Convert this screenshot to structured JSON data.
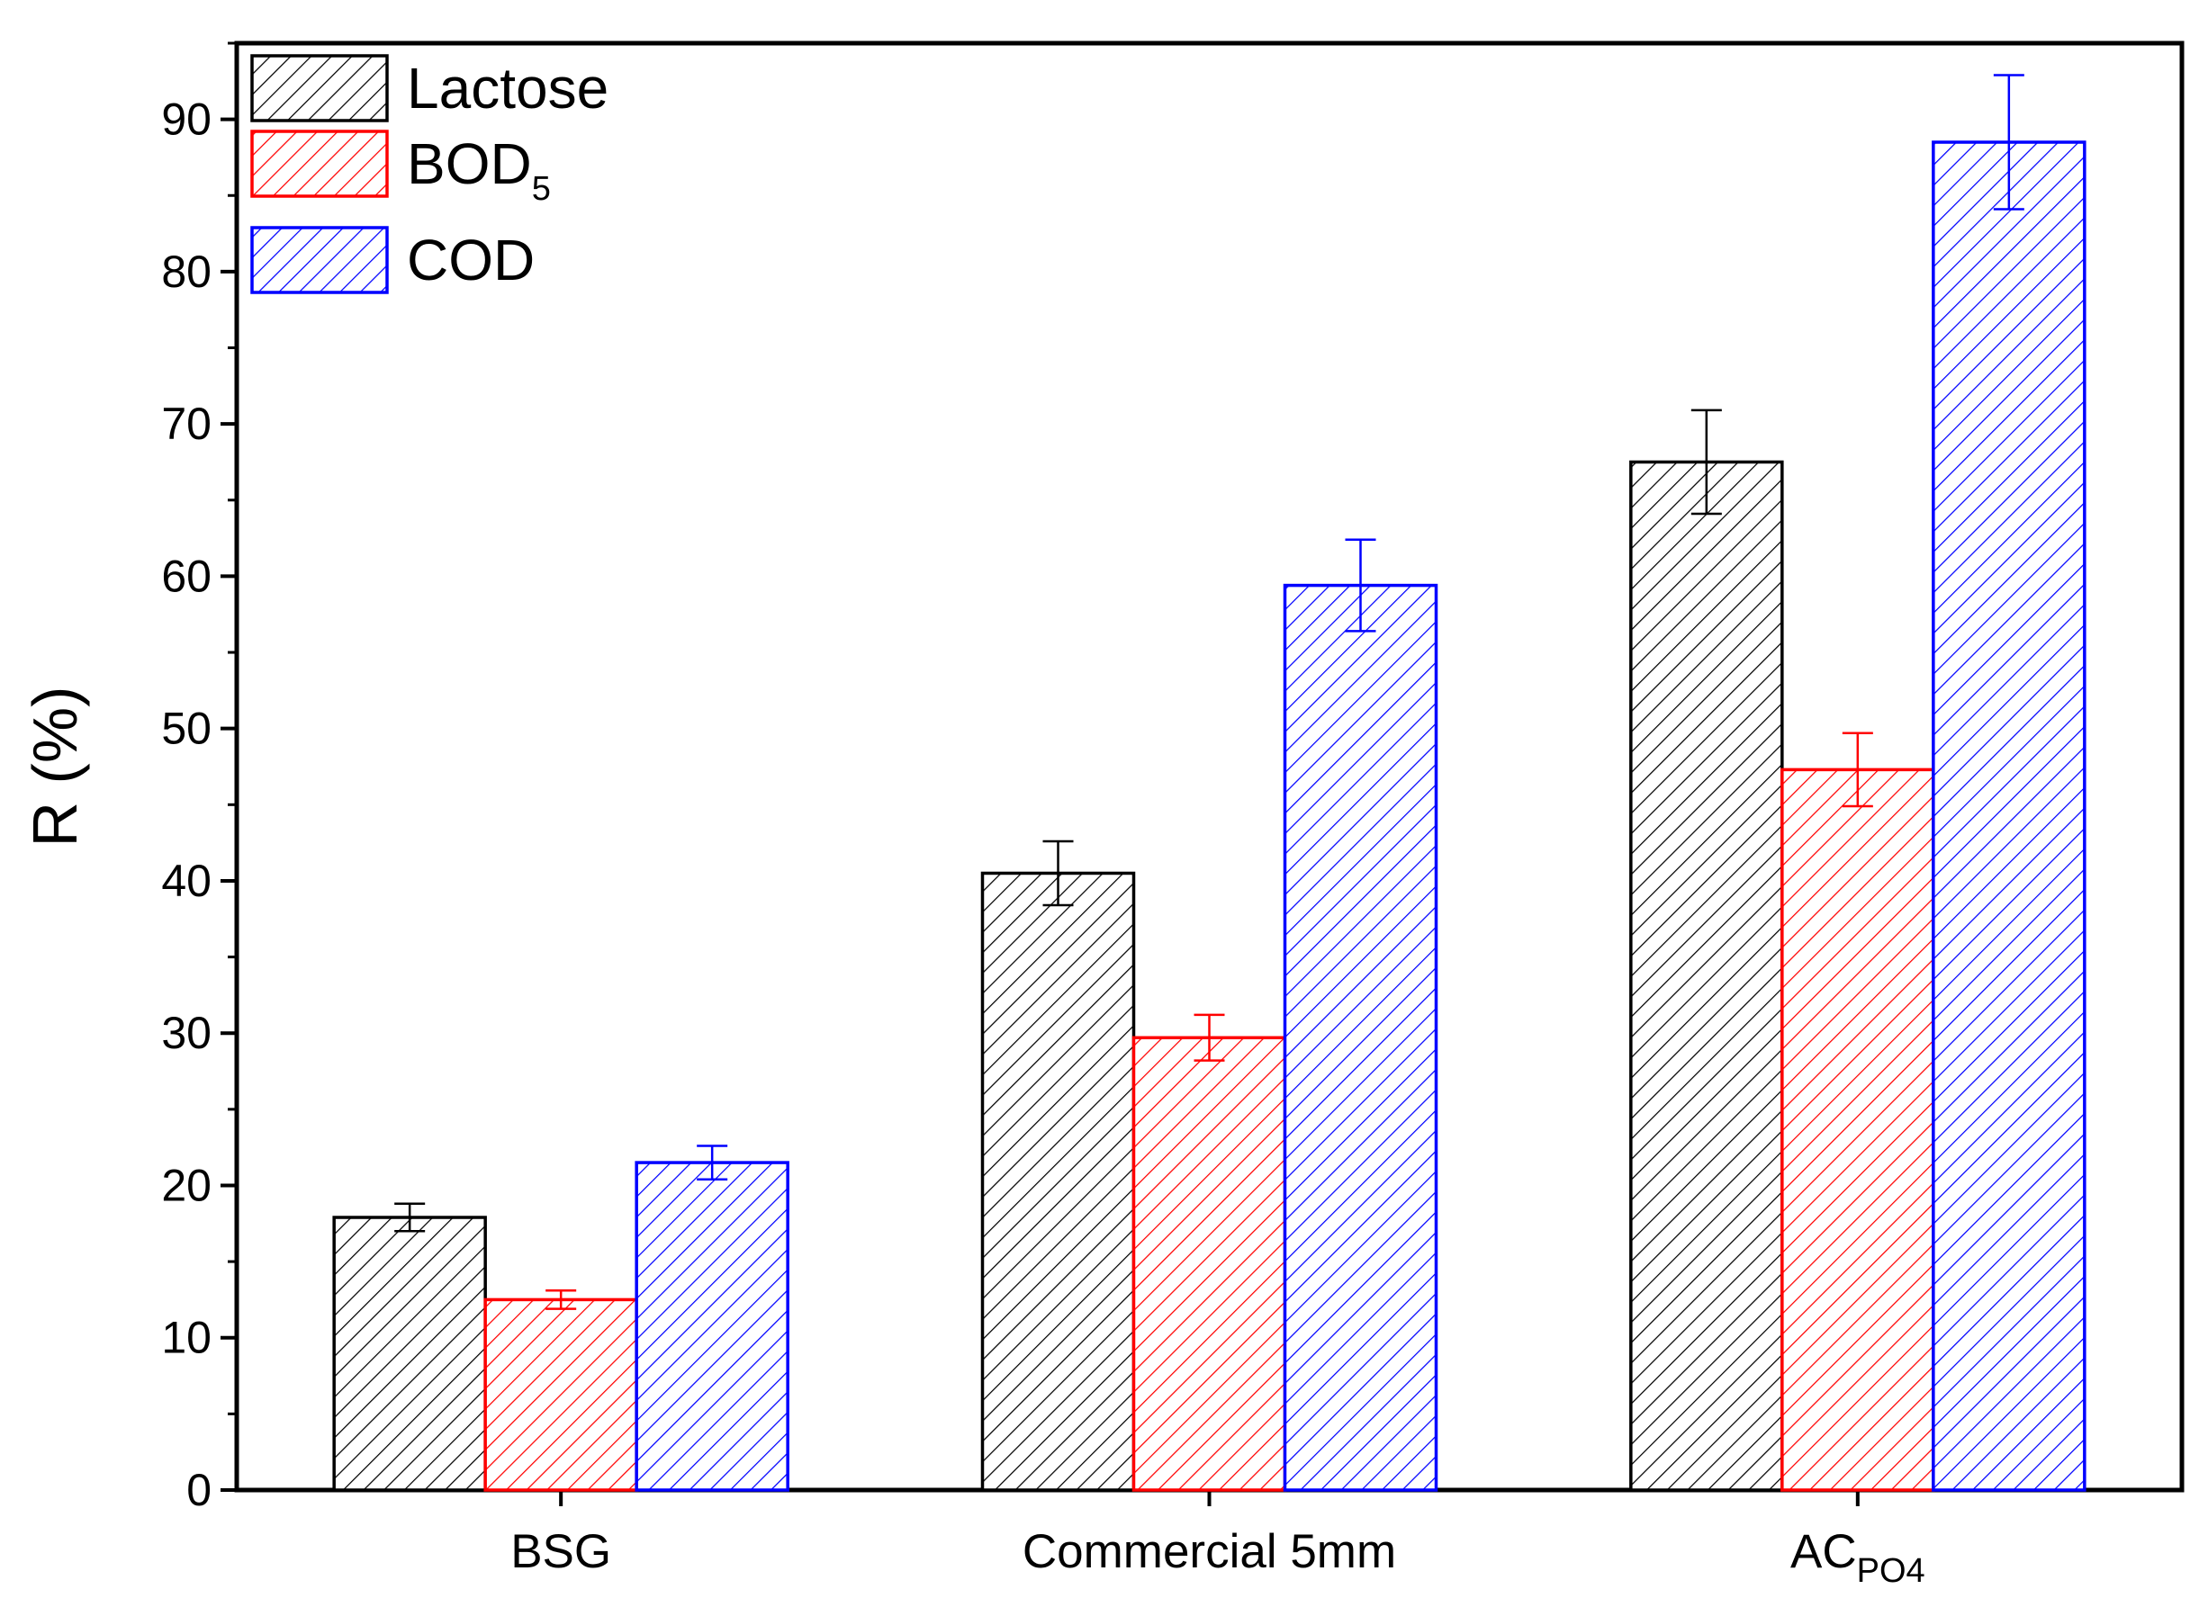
{
  "chart_data": {
    "type": "bar",
    "title": "",
    "xlabel": "",
    "ylabel": "R (%)",
    "ylim": [
      0,
      95
    ],
    "yticks": [
      0,
      10,
      20,
      30,
      40,
      50,
      60,
      70,
      80,
      90
    ],
    "grid": false,
    "legend_position": "top-left",
    "categories": [
      {
        "main": "BSG",
        "sub": ""
      },
      {
        "main": "Commercial 5mm",
        "sub": ""
      },
      {
        "main": "AC",
        "sub": "PO4"
      }
    ],
    "series": [
      {
        "name": "Lactose",
        "name_sub": "",
        "color": "#000000",
        "values": [
          17.9,
          40.5,
          67.5
        ],
        "errors": [
          0.9,
          2.1,
          3.4
        ]
      },
      {
        "name": "BOD",
        "name_sub": "5",
        "color": "#ff0000",
        "values": [
          12.5,
          29.7,
          47.3
        ],
        "errors": [
          0.6,
          1.5,
          2.4
        ]
      },
      {
        "name": "COD",
        "name_sub": "",
        "color": "#0000ff",
        "values": [
          21.5,
          59.4,
          88.5
        ],
        "errors": [
          1.1,
          3.0,
          4.4
        ]
      }
    ]
  }
}
